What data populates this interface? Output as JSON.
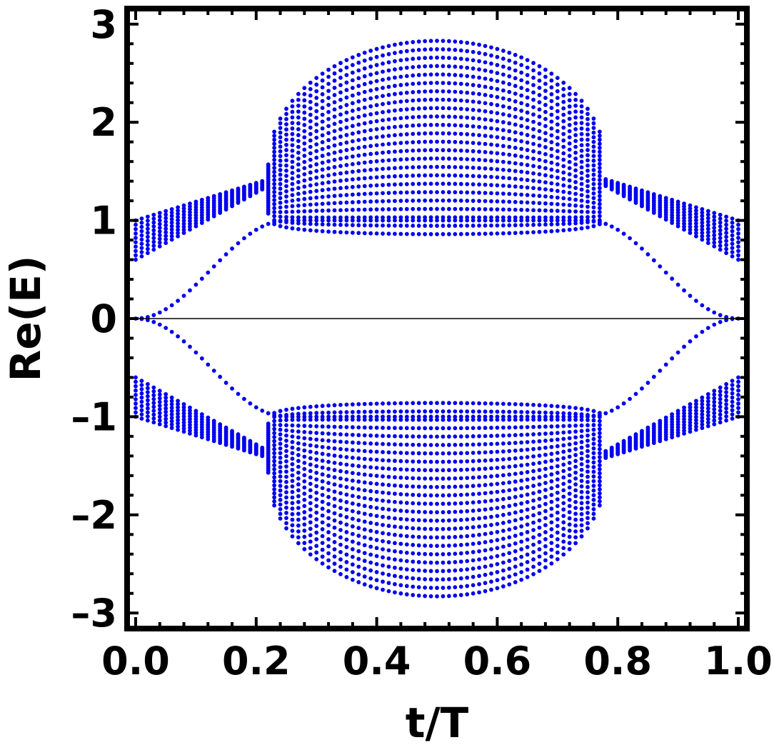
{
  "chart_data": {
    "type": "scatter",
    "title": "",
    "xlabel": "t/T",
    "ylabel": "Re(E)",
    "xlim": [
      0,
      1
    ],
    "ylim": [
      -3.1,
      3.1
    ],
    "x_ticks": [
      {
        "value": 0.0,
        "label": "0.0"
      },
      {
        "value": 0.2,
        "label": "0.2"
      },
      {
        "value": 0.4,
        "label": "0.4"
      },
      {
        "value": 0.6,
        "label": "0.6"
      },
      {
        "value": 0.8,
        "label": "0.8"
      },
      {
        "value": 1.0,
        "label": "1.0"
      }
    ],
    "y_ticks": [
      {
        "value": 3,
        "label": "3"
      },
      {
        "value": 2,
        "label": "2"
      },
      {
        "value": 1,
        "label": "1"
      },
      {
        "value": 0,
        "label": "0"
      },
      {
        "value": -1,
        "label": "–1"
      },
      {
        "value": -2,
        "label": "–2"
      },
      {
        "value": -3,
        "label": "–3"
      }
    ],
    "grid": false,
    "reference_line_y": 0,
    "marker_color": "#0000ee",
    "x_sample_step": 0.01,
    "series": [
      {
        "bands": [
          {
            "x_range": [
              0.0,
              0.22
            ],
            "e_range_at_t0": [
              0.6,
              1.0
            ],
            "e_range_at_t022": [
              1.35,
              1.42
            ],
            "levels": 10
          },
          {
            "x_range": [
              0.22,
              0.78
            ],
            "e_range_at_t05": [
              0.83,
              2.83
            ],
            "levels": 24
          },
          {
            "x_range": [
              0.78,
              1.0
            ],
            "e_range_at_t1": [
              0.6,
              1.0
            ],
            "e_range_at_t078": [
              1.35,
              1.42
            ],
            "levels": 10
          }
        ],
        "edge_state_peak": 1.0,
        "edge_state_zero_at": [
          0.0,
          1.0
        ],
        "symmetric_about_zero": true
      }
    ]
  }
}
